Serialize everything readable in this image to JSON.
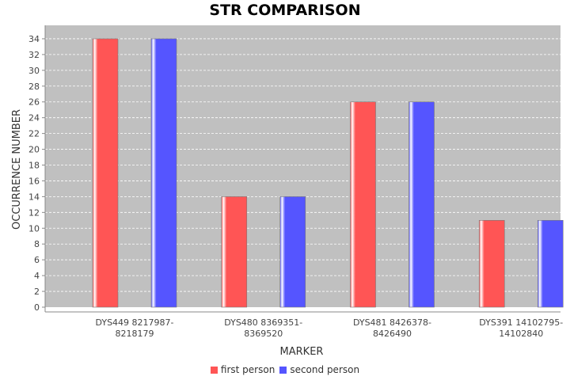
{
  "chart_data": {
    "type": "bar",
    "title": "STR COMPARISON",
    "xlabel": "MARKER",
    "ylabel": "OCCURRENCE NUMBER",
    "categories": [
      [
        "DYS449 8217987-",
        "8218179"
      ],
      [
        "DYS480 8369351-",
        "8369520"
      ],
      [
        "DYS481 8426378-",
        "8426490"
      ],
      [
        "DYS391 14102795-",
        "14102840"
      ]
    ],
    "series": [
      {
        "name": "first person",
        "values": [
          34,
          14,
          26,
          11
        ],
        "color": "#ff5555"
      },
      {
        "name": "second person",
        "values": [
          34,
          14,
          26,
          11
        ],
        "color": "#5555ff"
      }
    ],
    "ylim": [
      0,
      35.7
    ],
    "yticks": [
      0,
      2,
      4,
      6,
      8,
      10,
      12,
      14,
      16,
      18,
      20,
      22,
      24,
      26,
      28,
      30,
      32,
      34
    ],
    "grid": true,
    "plot_background": "#c0c0c0",
    "legend_position": "bottom"
  }
}
